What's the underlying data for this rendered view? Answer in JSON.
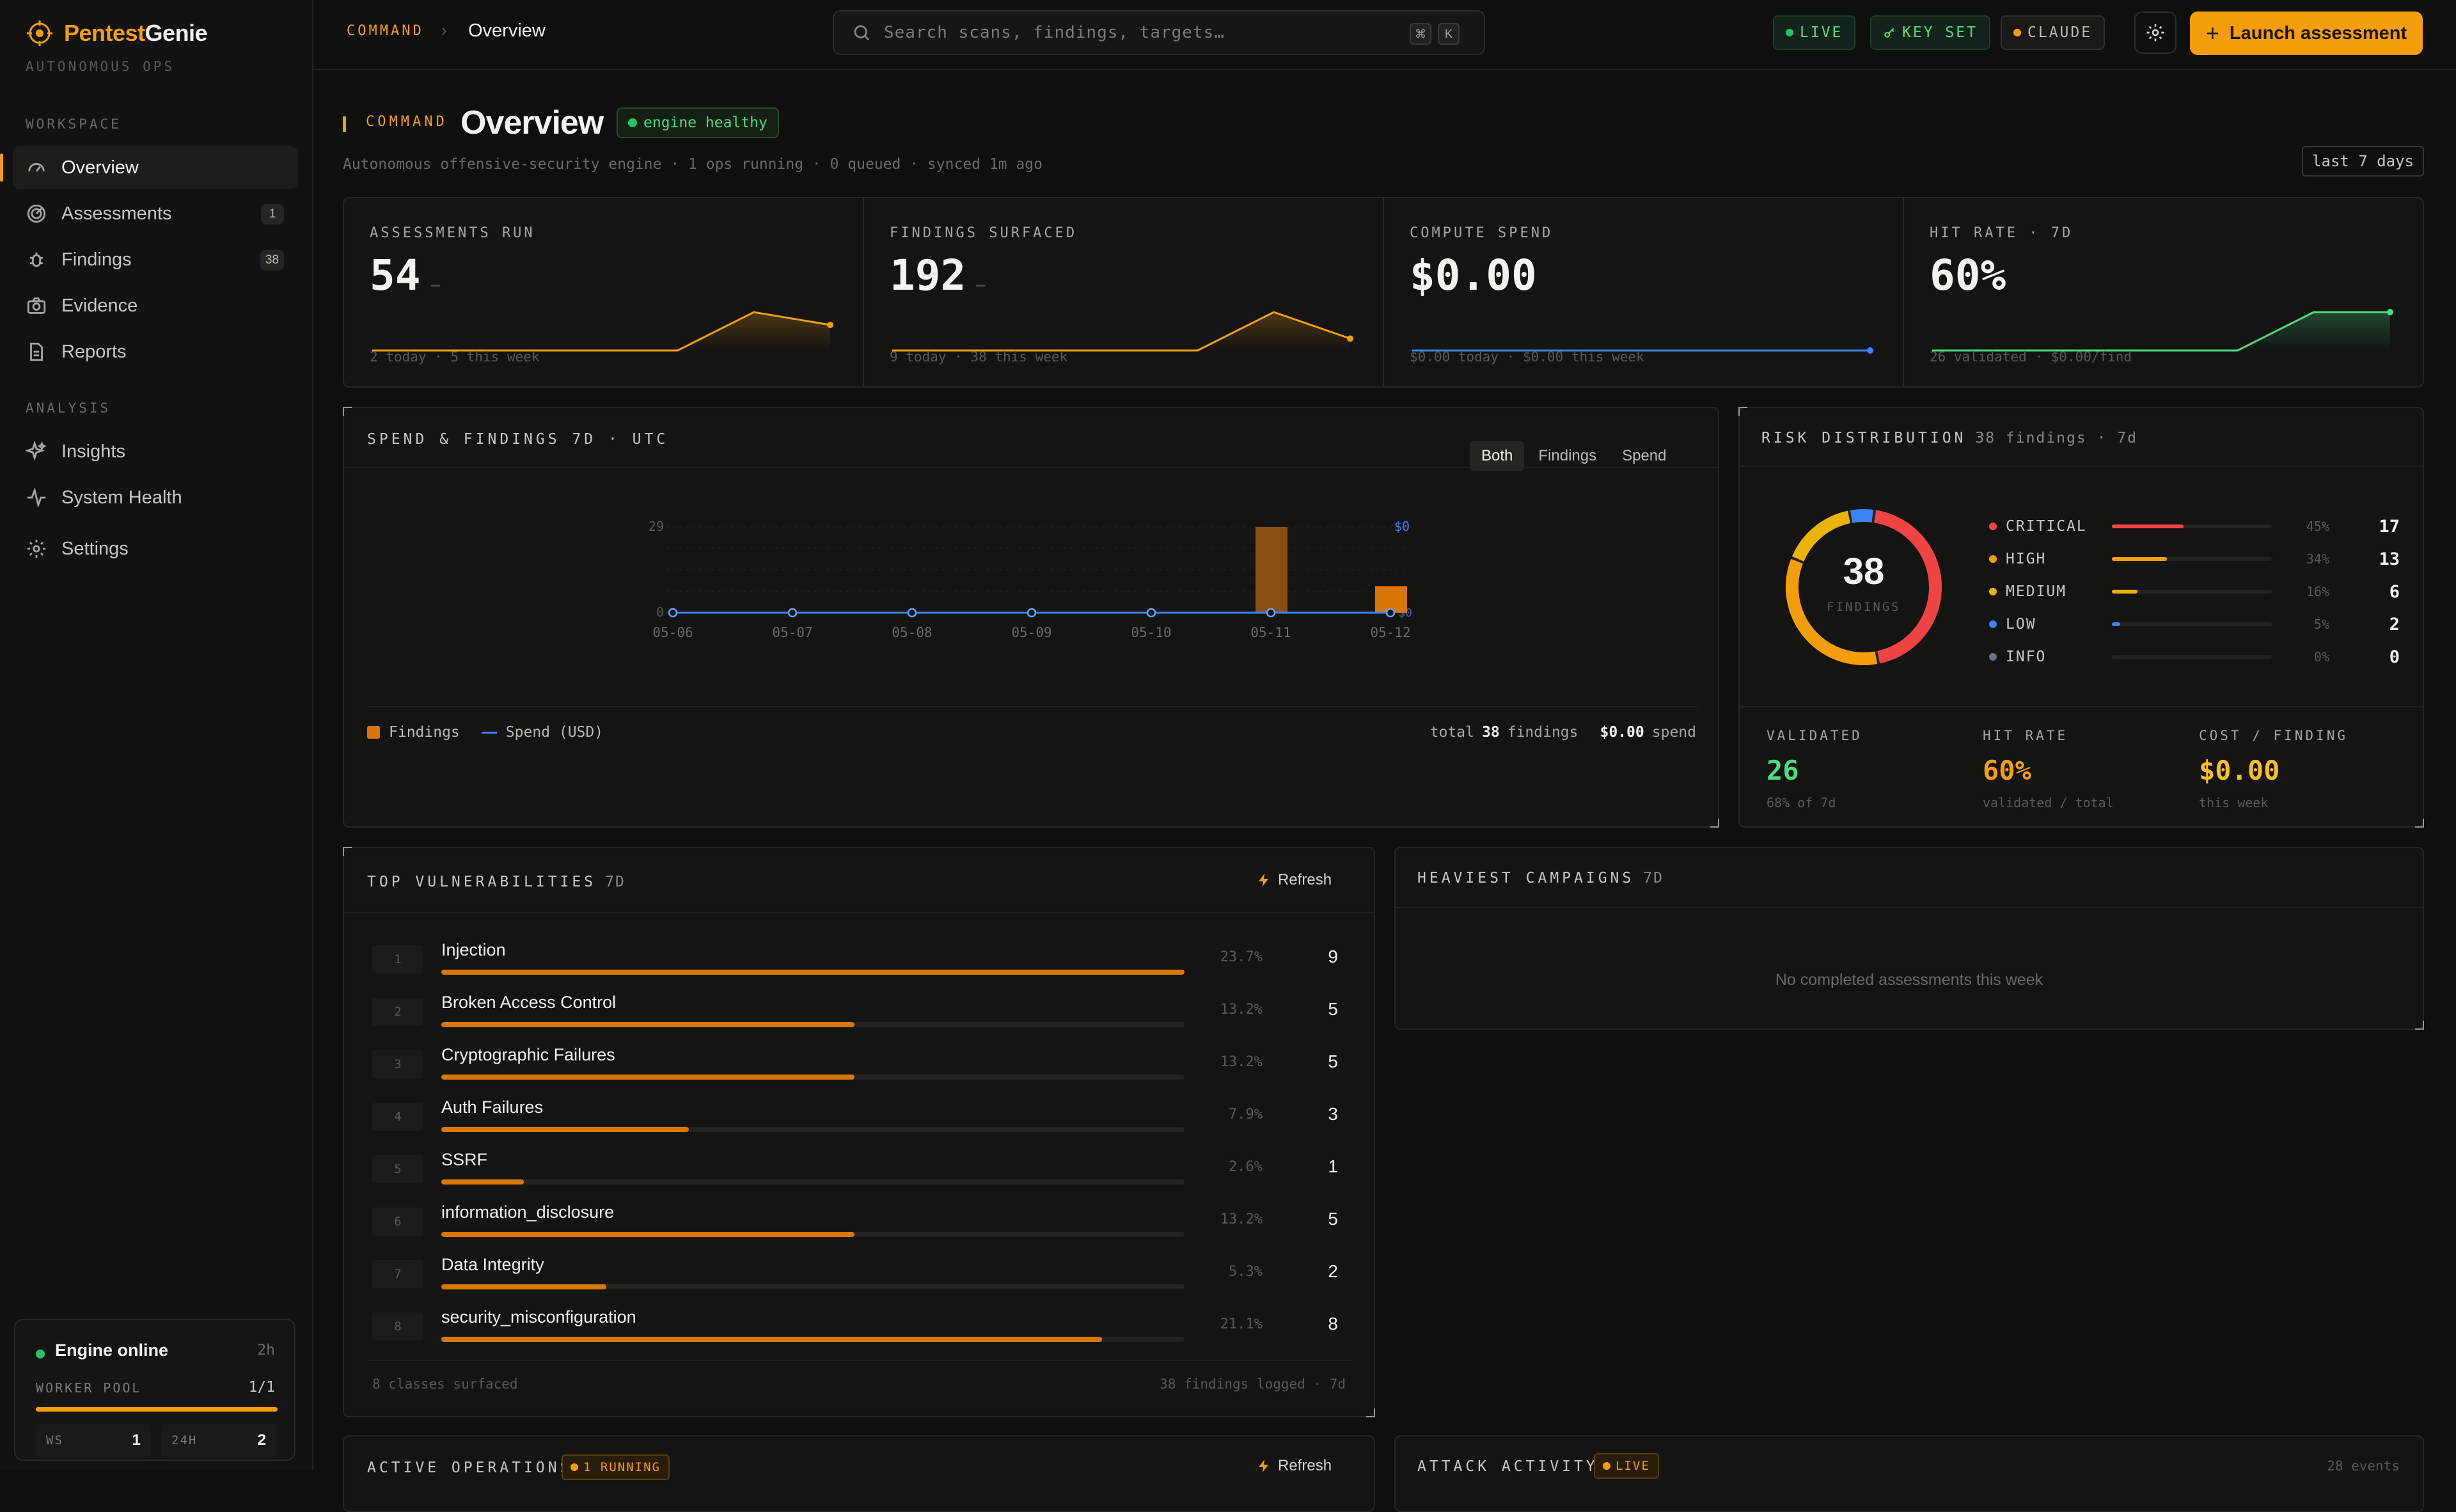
{
  "sidebar": {
    "brand_prefix": "Pentest",
    "brand_suffix": "Genie",
    "brand_sub": "AUTONOMOUS OPS",
    "workspace_label": "WORKSPACE",
    "analysis_label": "ANALYSIS",
    "items": [
      {
        "label": "Overview",
        "icon": "dashboard-icon",
        "count": ""
      },
      {
        "label": "Assessments",
        "icon": "radar-icon",
        "count": "1"
      },
      {
        "label": "Findings",
        "icon": "bug-icon",
        "count": "38"
      },
      {
        "label": "Evidence",
        "icon": "camera-icon",
        "count": ""
      },
      {
        "label": "Reports",
        "icon": "document-icon",
        "count": ""
      },
      {
        "label": "Insights",
        "icon": "sparkles-icon",
        "count": ""
      },
      {
        "label": "System Health",
        "icon": "pulse-icon",
        "count": ""
      },
      {
        "label": "Settings",
        "icon": "gear-icon",
        "count": ""
      }
    ],
    "engine": {
      "title": "Engine online",
      "age": "2h",
      "pool_label": "WORKER POOL",
      "pool_value": "1/1",
      "pool_fraction": 1.0,
      "ws_label": "WS",
      "ws_value": "1",
      "h24_label": "24H",
      "h24_value": "2"
    }
  },
  "topbar": {
    "crumb": "COMMAND",
    "crumb_sep": "›",
    "current": "Overview",
    "search_placeholder": "Search scans, findings, targets…",
    "kbd1": "⌘",
    "kbd2": "K",
    "live": "LIVE",
    "keyset": "KEY SET",
    "model": "CLAUDE",
    "launch": "Launch assessment"
  },
  "header": {
    "label": "COMMAND",
    "title": "Overview",
    "health": "engine healthy",
    "subline": "Autonomous offensive-security engine · 1 ops running · 0 queued · synced 1m ago",
    "range": "last 7 days"
  },
  "kpis": [
    {
      "label": "ASSESSMENTS RUN",
      "value": "54",
      "dash": "—",
      "foot": "2 today · 5 this week",
      "color": "#f59e0b",
      "spark": [
        0,
        0,
        0,
        0,
        0,
        3,
        2
      ]
    },
    {
      "label": "FINDINGS SURFACED",
      "value": "192",
      "dash": "—",
      "foot": "9 today · 38 this week",
      "color": "#f59e0b",
      "spark": [
        0,
        0,
        0,
        0,
        0,
        29,
        9
      ]
    },
    {
      "label": "COMPUTE SPEND",
      "value": "$0.00",
      "dash": "",
      "foot": "$0.00 today · $0.00 this week",
      "color": "#3b82f6",
      "spark": [
        0,
        0,
        0,
        0,
        0,
        0,
        0
      ]
    },
    {
      "label": "HIT RATE · 7D",
      "value": "60%",
      "dash": "",
      "foot": "26 validated · $0.00/find",
      "color": "#4ade80",
      "spark": [
        0,
        0,
        0,
        0,
        0,
        60,
        60
      ]
    }
  ],
  "spend_chart": {
    "title": "SPEND & FINDINGS 7D · UTC",
    "tabs": [
      "Both",
      "Findings",
      "Spend"
    ],
    "active_tab": "Both",
    "legend_findings": "Findings",
    "legend_spend": "Spend (USD)",
    "total_prefix": "total",
    "total_findings": "38",
    "total_mid": "findings",
    "total_spend": "$0.00",
    "total_suffix": "spend",
    "y_max_label": "29",
    "y_min_label": "0",
    "spend_max_label": "$0",
    "spend_min_label": "$0"
  },
  "chart_data": {
    "type": "bar",
    "categories": [
      "05-06",
      "05-07",
      "05-08",
      "05-09",
      "05-10",
      "05-11",
      "05-12"
    ],
    "series": [
      {
        "name": "Findings",
        "values": [
          0,
          0,
          0,
          0,
          0,
          29,
          9
        ],
        "color": "#b45309"
      },
      {
        "name": "Spend (USD)",
        "values": [
          0,
          0,
          0,
          0,
          0,
          0,
          0
        ],
        "color": "#3b82f6"
      }
    ],
    "ylim": [
      0,
      29
    ],
    "legend": "bottom-left"
  },
  "risk": {
    "title": "RISK DISTRIBUTION",
    "sub": "38 findings · 7d",
    "total": "38",
    "total_label": "FINDINGS",
    "rows": [
      {
        "name": "CRITICAL",
        "pct": "45%",
        "count": "17",
        "frac": 0.447,
        "color": "#ef4444"
      },
      {
        "name": "HIGH",
        "pct": "34%",
        "count": "13",
        "frac": 0.342,
        "color": "#f59e0b"
      },
      {
        "name": "MEDIUM",
        "pct": "16%",
        "count": "6",
        "frac": 0.158,
        "color": "#eab308"
      },
      {
        "name": "LOW",
        "pct": "5%",
        "count": "2",
        "frac": 0.053,
        "color": "#3b82f6"
      },
      {
        "name": "INFO",
        "pct": "0%",
        "count": "0",
        "frac": 0,
        "color": "#6b7280"
      }
    ],
    "validated_label": "VALIDATED",
    "validated": "26",
    "validated_sub": "68% of 7d",
    "hitrate_label": "HIT RATE",
    "hitrate": "60%",
    "hitrate_sub": "validated / total",
    "cost_label": "COST / FINDING",
    "cost": "$0.00",
    "cost_sub": "this week"
  },
  "vulns": {
    "title": "TOP VULNERABILITIES",
    "sub": "7D",
    "refresh": "Refresh",
    "footer_left": "8 classes surfaced",
    "footer_right": "38 findings logged · 7d",
    "rows": [
      {
        "rank": "1",
        "name": "Injection",
        "pct": "23.7%",
        "count": "9",
        "frac": 1.0
      },
      {
        "rank": "2",
        "name": "Broken Access Control",
        "pct": "13.2%",
        "count": "5",
        "frac": 0.556
      },
      {
        "rank": "3",
        "name": "Cryptographic Failures",
        "pct": "13.2%",
        "count": "5",
        "frac": 0.556
      },
      {
        "rank": "4",
        "name": "Auth Failures",
        "pct": "7.9%",
        "count": "3",
        "frac": 0.333
      },
      {
        "rank": "5",
        "name": "SSRF",
        "pct": "2.6%",
        "count": "1",
        "frac": 0.111
      },
      {
        "rank": "6",
        "name": "information_disclosure",
        "pct": "13.2%",
        "count": "5",
        "frac": 0.556
      },
      {
        "rank": "7",
        "name": "Data Integrity",
        "pct": "5.3%",
        "count": "2",
        "frac": 0.222
      },
      {
        "rank": "8",
        "name": "security_misconfiguration",
        "pct": "21.1%",
        "count": "8",
        "frac": 0.889
      }
    ]
  },
  "campaigns": {
    "title": "HEAVIEST CAMPAIGNS",
    "sub": "7D",
    "empty": "No completed assessments this week"
  },
  "ops": {
    "title": "ACTIVE OPERATIONS",
    "badge": "1 RUNNING",
    "refresh": "Refresh"
  },
  "activity": {
    "title": "ATTACK ACTIVITY",
    "badge": "LIVE",
    "count": "28 events"
  }
}
